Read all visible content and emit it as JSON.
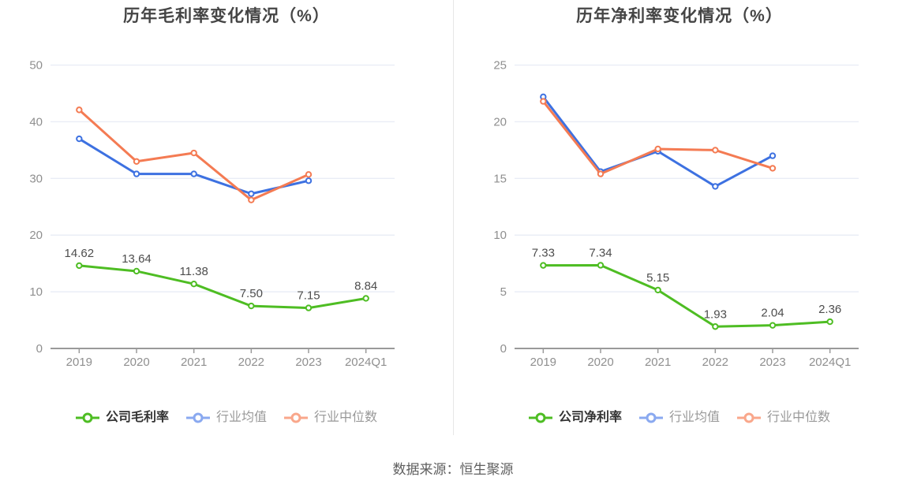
{
  "footer": {
    "source_text": "数据来源：恒生聚源"
  },
  "style_colors": {
    "company_green": "#4ebd23",
    "industry_avg_blue": "#3d71e1",
    "industry_median_orange": "#f47b53",
    "legend_blue_light": "#8aa9f0",
    "legend_orange_light": "#f9a78b",
    "grid_line": "#e9edf6",
    "axis_line": "#9a9a9a",
    "axis_text": "#8f8f8f",
    "value_label_text": "#4d4d4d",
    "title_text": "#454545"
  },
  "chart_data": [
    {
      "type": "line",
      "title": "历年毛利率变化情况（%）",
      "xlabel": "",
      "ylabel": "",
      "ylim": [
        0,
        50
      ],
      "yticks": [
        0,
        10,
        20,
        30,
        40,
        50
      ],
      "grid": true,
      "legend_position": "bottom",
      "categories": [
        "2019",
        "2020",
        "2021",
        "2022",
        "2023",
        "2024Q1"
      ],
      "series": [
        {
          "name": "公司毛利率",
          "color": "#4ebd23",
          "values": [
            14.62,
            13.64,
            11.38,
            7.5,
            7.15,
            8.84
          ],
          "labels": [
            "14.62",
            "13.64",
            "11.38",
            "7.50",
            "7.15",
            "8.84"
          ]
        },
        {
          "name": "行业均值",
          "color": "#3d71e1",
          "legend_color": "#8aa9f0",
          "values": [
            37.0,
            30.8,
            30.8,
            27.3,
            29.6
          ]
        },
        {
          "name": "行业中位数",
          "color": "#f47b53",
          "legend_color": "#f9a78b",
          "values": [
            42.1,
            33.0,
            34.5,
            26.2,
            30.7
          ]
        }
      ]
    },
    {
      "type": "line",
      "title": "历年净利率变化情况（%）",
      "xlabel": "",
      "ylabel": "",
      "ylim": [
        0,
        25
      ],
      "yticks": [
        0,
        5,
        10,
        15,
        20,
        25
      ],
      "grid": true,
      "legend_position": "bottom",
      "categories": [
        "2019",
        "2020",
        "2021",
        "2022",
        "2023",
        "2024Q1"
      ],
      "series": [
        {
          "name": "公司净利率",
          "color": "#4ebd23",
          "values": [
            7.33,
            7.34,
            5.15,
            1.93,
            2.04,
            2.36
          ],
          "labels": [
            "7.33",
            "7.34",
            "5.15",
            "1.93",
            "2.04",
            "2.36"
          ]
        },
        {
          "name": "行业均值",
          "color": "#3d71e1",
          "legend_color": "#8aa9f0",
          "values": [
            22.2,
            15.6,
            17.4,
            14.3,
            17.0
          ]
        },
        {
          "name": "行业中位数",
          "color": "#f47b53",
          "legend_color": "#f9a78b",
          "values": [
            21.8,
            15.4,
            17.6,
            17.5,
            15.9
          ]
        }
      ]
    }
  ]
}
